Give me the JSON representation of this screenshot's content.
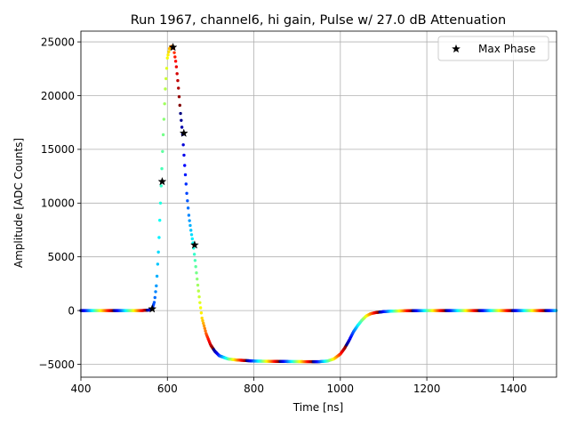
{
  "chart_data": {
    "type": "scatter",
    "title": "Run 1967, channel6, hi gain, Pulse w/ 27.0 dB Attenuation",
    "xlabel": "Time [ns]",
    "ylabel": "Amplitude [ADC Counts]",
    "xlim": [
      400,
      1500
    ],
    "ylim": [
      -6200,
      26000
    ],
    "xticks": [
      400,
      600,
      800,
      1000,
      1200,
      1400
    ],
    "yticks": [
      -5000,
      0,
      5000,
      10000,
      15000,
      20000,
      25000
    ],
    "xtick_labels": [
      "400",
      "600",
      "800",
      "1000",
      "1200",
      "1400"
    ],
    "ytick_labels": [
      "−5000",
      "0",
      "5000",
      "10000",
      "15000",
      "20000",
      "25000"
    ],
    "grid": true,
    "legend_position": "top-right",
    "series": [
      {
        "kind": "waveform",
        "colormap": "jet",
        "marker": "dot",
        "x": [
          400,
          540,
          558,
          565,
          570,
          575,
          580,
          585,
          590,
          595,
          600,
          605,
          610,
          614,
          620,
          625,
          630,
          635,
          640,
          645,
          650,
          655,
          660,
          665,
          670,
          675,
          680,
          690,
          700,
          710,
          720,
          740,
          760,
          780,
          800,
          850,
          900,
          950,
          970,
          985,
          1000,
          1010,
          1020,
          1030,
          1040,
          1050,
          1060,
          1070,
          1080,
          1100,
          1120,
          1150,
          1200,
          1300,
          1400,
          1500
        ],
        "y": [
          0,
          0,
          50,
          200,
          800,
          2500,
          6000,
          11000,
          16000,
          20500,
          23500,
          24400,
          24600,
          24500,
          23000,
          21000,
          18500,
          16500,
          13500,
          10800,
          8700,
          7300,
          6100,
          4300,
          2500,
          800,
          -700,
          -2200,
          -3200,
          -3800,
          -4200,
          -4500,
          -4600,
          -4650,
          -4700,
          -4730,
          -4750,
          -4760,
          -4700,
          -4500,
          -4050,
          -3500,
          -2800,
          -2000,
          -1400,
          -900,
          -500,
          -300,
          -200,
          -100,
          -50,
          -20,
          0,
          0,
          0,
          0
        ]
      },
      {
        "name": "Max Phase",
        "kind": "markers",
        "marker": "star",
        "color": "#000000",
        "x": [
          565,
          588,
          613,
          638,
          663
        ],
        "y": [
          150,
          12000,
          24500,
          16500,
          6100
        ]
      }
    ]
  }
}
